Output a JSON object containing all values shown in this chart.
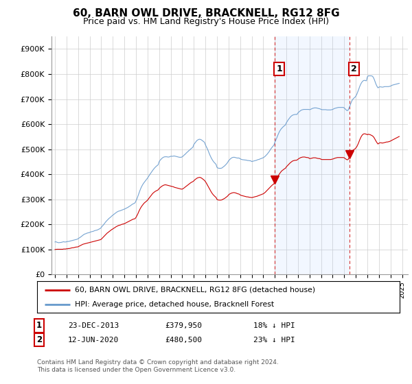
{
  "title": "60, BARN OWL DRIVE, BRACKNELL, RG12 8FG",
  "subtitle": "Price paid vs. HM Land Registry's House Price Index (HPI)",
  "title_fontsize": 11,
  "subtitle_fontsize": 9,
  "ylabel_ticks": [
    "£0",
    "£100K",
    "£200K",
    "£300K",
    "£400K",
    "£500K",
    "£600K",
    "£700K",
    "£800K",
    "£900K"
  ],
  "ytick_values": [
    0,
    100000,
    200000,
    300000,
    400000,
    500000,
    600000,
    700000,
    800000,
    900000
  ],
  "ylim": [
    0,
    950000
  ],
  "xlim_start": 1994.7,
  "xlim_end": 2025.5,
  "background_color": "#ffffff",
  "plot_bg_color": "#ffffff",
  "grid_color": "#cccccc",
  "hpi_color": "#6699cc",
  "price_color": "#cc0000",
  "shade_color": "#ddeeff",
  "marker1_date": 2013.97,
  "marker2_date": 2020.45,
  "marker1_price": 379950,
  "marker2_price": 480500,
  "vline_color": "#cc0000",
  "legend_line1": "60, BARN OWL DRIVE, BRACKNELL, RG12 8FG (detached house)",
  "legend_line2": "HPI: Average price, detached house, Bracknell Forest",
  "footnote": "Contains HM Land Registry data © Crown copyright and database right 2024.\nThis data is licensed under the Open Government Licence v3.0.",
  "hpi_months": [
    1995.0,
    1995.083,
    1995.167,
    1995.25,
    1995.333,
    1995.417,
    1995.5,
    1995.583,
    1995.667,
    1995.75,
    1995.833,
    1995.917,
    1996.0,
    1996.083,
    1996.167,
    1996.25,
    1996.333,
    1996.417,
    1996.5,
    1996.583,
    1996.667,
    1996.75,
    1996.833,
    1996.917,
    1997.0,
    1997.083,
    1997.167,
    1997.25,
    1997.333,
    1997.417,
    1997.5,
    1997.583,
    1997.667,
    1997.75,
    1997.833,
    1997.917,
    1998.0,
    1998.083,
    1998.167,
    1998.25,
    1998.333,
    1998.417,
    1998.5,
    1998.583,
    1998.667,
    1998.75,
    1998.833,
    1998.917,
    1999.0,
    1999.083,
    1999.167,
    1999.25,
    1999.333,
    1999.417,
    1999.5,
    1999.583,
    1999.667,
    1999.75,
    1999.833,
    1999.917,
    2000.0,
    2000.083,
    2000.167,
    2000.25,
    2000.333,
    2000.417,
    2000.5,
    2000.583,
    2000.667,
    2000.75,
    2000.833,
    2000.917,
    2001.0,
    2001.083,
    2001.167,
    2001.25,
    2001.333,
    2001.417,
    2001.5,
    2001.583,
    2001.667,
    2001.75,
    2001.833,
    2001.917,
    2002.0,
    2002.083,
    2002.167,
    2002.25,
    2002.333,
    2002.417,
    2002.5,
    2002.583,
    2002.667,
    2002.75,
    2002.833,
    2002.917,
    2003.0,
    2003.083,
    2003.167,
    2003.25,
    2003.333,
    2003.417,
    2003.5,
    2003.583,
    2003.667,
    2003.75,
    2003.833,
    2003.917,
    2004.0,
    2004.083,
    2004.167,
    2004.25,
    2004.333,
    2004.417,
    2004.5,
    2004.583,
    2004.667,
    2004.75,
    2004.833,
    2004.917,
    2005.0,
    2005.083,
    2005.167,
    2005.25,
    2005.333,
    2005.417,
    2005.5,
    2005.583,
    2005.667,
    2005.75,
    2005.833,
    2005.917,
    2006.0,
    2006.083,
    2006.167,
    2006.25,
    2006.333,
    2006.417,
    2006.5,
    2006.583,
    2006.667,
    2006.75,
    2006.833,
    2006.917,
    2007.0,
    2007.083,
    2007.167,
    2007.25,
    2007.333,
    2007.417,
    2007.5,
    2007.583,
    2007.667,
    2007.75,
    2007.833,
    2007.917,
    2008.0,
    2008.083,
    2008.167,
    2008.25,
    2008.333,
    2008.417,
    2008.5,
    2008.583,
    2008.667,
    2008.75,
    2008.833,
    2008.917,
    2009.0,
    2009.083,
    2009.167,
    2009.25,
    2009.333,
    2009.417,
    2009.5,
    2009.583,
    2009.667,
    2009.75,
    2009.833,
    2009.917,
    2010.0,
    2010.083,
    2010.167,
    2010.25,
    2010.333,
    2010.417,
    2010.5,
    2010.583,
    2010.667,
    2010.75,
    2010.833,
    2010.917,
    2011.0,
    2011.083,
    2011.167,
    2011.25,
    2011.333,
    2011.417,
    2011.5,
    2011.583,
    2011.667,
    2011.75,
    2011.833,
    2011.917,
    2012.0,
    2012.083,
    2012.167,
    2012.25,
    2012.333,
    2012.417,
    2012.5,
    2012.583,
    2012.667,
    2012.75,
    2012.833,
    2012.917,
    2013.0,
    2013.083,
    2013.167,
    2013.25,
    2013.333,
    2013.417,
    2013.5,
    2013.583,
    2013.667,
    2013.75,
    2013.833,
    2013.917,
    2014.0,
    2014.083,
    2014.167,
    2014.25,
    2014.333,
    2014.417,
    2014.5,
    2014.583,
    2014.667,
    2014.75,
    2014.833,
    2014.917,
    2015.0,
    2015.083,
    2015.167,
    2015.25,
    2015.333,
    2015.417,
    2015.5,
    2015.583,
    2015.667,
    2015.75,
    2015.833,
    2015.917,
    2016.0,
    2016.083,
    2016.167,
    2016.25,
    2016.333,
    2016.417,
    2016.5,
    2016.583,
    2016.667,
    2016.75,
    2016.833,
    2016.917,
    2017.0,
    2017.083,
    2017.167,
    2017.25,
    2017.333,
    2017.417,
    2017.5,
    2017.583,
    2017.667,
    2017.75,
    2017.833,
    2017.917,
    2018.0,
    2018.083,
    2018.167,
    2018.25,
    2018.333,
    2018.417,
    2018.5,
    2018.583,
    2018.667,
    2018.75,
    2018.833,
    2018.917,
    2019.0,
    2019.083,
    2019.167,
    2019.25,
    2019.333,
    2019.417,
    2019.5,
    2019.583,
    2019.667,
    2019.75,
    2019.833,
    2019.917,
    2020.0,
    2020.083,
    2020.167,
    2020.25,
    2020.333,
    2020.417,
    2020.5,
    2020.583,
    2020.667,
    2020.75,
    2020.833,
    2020.917,
    2021.0,
    2021.083,
    2021.167,
    2021.25,
    2021.333,
    2021.417,
    2021.5,
    2021.583,
    2021.667,
    2021.75,
    2021.833,
    2021.917,
    2022.0,
    2022.083,
    2022.167,
    2022.25,
    2022.333,
    2022.417,
    2022.5,
    2022.583,
    2022.667,
    2022.75,
    2022.833,
    2022.917,
    2023.0,
    2023.083,
    2023.167,
    2023.25,
    2023.333,
    2023.417,
    2023.5,
    2023.583,
    2023.667,
    2023.75,
    2023.833,
    2023.917,
    2024.0,
    2024.083,
    2024.167,
    2024.25,
    2024.333,
    2024.417,
    2024.5,
    2024.583,
    2024.667,
    2024.75
  ],
  "hpi_values": [
    130000,
    131000,
    129000,
    128000,
    127000,
    128000,
    128000,
    129000,
    130000,
    131000,
    130000,
    130000,
    131000,
    132000,
    132000,
    133000,
    134000,
    135000,
    136000,
    137000,
    138000,
    139000,
    140000,
    141000,
    143000,
    146000,
    148000,
    151000,
    154000,
    157000,
    160000,
    162000,
    163000,
    165000,
    166000,
    167000,
    168000,
    170000,
    171000,
    172000,
    173000,
    175000,
    176000,
    177000,
    178000,
    180000,
    182000,
    184000,
    188000,
    193000,
    197000,
    202000,
    207000,
    212000,
    216000,
    220000,
    224000,
    227000,
    230000,
    234000,
    237000,
    240000,
    243000,
    246000,
    249000,
    251000,
    253000,
    254000,
    255000,
    257000,
    258000,
    260000,
    261000,
    263000,
    265000,
    267000,
    269000,
    272000,
    274000,
    277000,
    280000,
    282000,
    284000,
    286000,
    294000,
    302000,
    313000,
    323000,
    334000,
    344000,
    352000,
    359000,
    365000,
    370000,
    375000,
    380000,
    385000,
    391000,
    397000,
    403000,
    408000,
    414000,
    419000,
    424000,
    428000,
    432000,
    435000,
    438000,
    450000,
    456000,
    460000,
    464000,
    467000,
    469000,
    470000,
    470000,
    470000,
    469000,
    469000,
    470000,
    472000,
    472000,
    472000,
    473000,
    473000,
    472000,
    471000,
    470000,
    469000,
    468000,
    468000,
    468000,
    470000,
    473000,
    477000,
    480000,
    484000,
    488000,
    491000,
    495000,
    498000,
    502000,
    505000,
    508000,
    519000,
    524000,
    529000,
    534000,
    537000,
    539000,
    540000,
    539000,
    537000,
    534000,
    531000,
    528000,
    518000,
    510000,
    502000,
    493000,
    483000,
    474000,
    466000,
    459000,
    453000,
    448000,
    444000,
    440000,
    428000,
    425000,
    424000,
    424000,
    424000,
    425000,
    428000,
    431000,
    434000,
    438000,
    442000,
    447000,
    454000,
    458000,
    462000,
    465000,
    467000,
    468000,
    468000,
    467000,
    466000,
    465000,
    465000,
    465000,
    462000,
    460000,
    459000,
    458000,
    458000,
    457000,
    457000,
    456000,
    455000,
    455000,
    454000,
    454000,
    451000,
    452000,
    453000,
    454000,
    455000,
    456000,
    458000,
    459000,
    460000,
    462000,
    463000,
    465000,
    466000,
    469000,
    472000,
    476000,
    480000,
    485000,
    490000,
    496000,
    502000,
    507000,
    512000,
    516000,
    528000,
    536000,
    545000,
    555000,
    564000,
    572000,
    578000,
    583000,
    587000,
    591000,
    594000,
    597000,
    606000,
    612000,
    618000,
    623000,
    628000,
    632000,
    635000,
    637000,
    638000,
    639000,
    639000,
    639000,
    645000,
    649000,
    652000,
    655000,
    657000,
    658000,
    659000,
    659000,
    659000,
    659000,
    659000,
    659000,
    658000,
    659000,
    661000,
    663000,
    664000,
    665000,
    665000,
    665000,
    664000,
    663000,
    662000,
    661000,
    659000,
    658000,
    658000,
    658000,
    658000,
    658000,
    657000,
    657000,
    657000,
    657000,
    657000,
    658000,
    659000,
    661000,
    663000,
    664000,
    665000,
    666000,
    667000,
    667000,
    667000,
    667000,
    667000,
    667000,
    665000,
    661000,
    657000,
    654000,
    656000,
    665000,
    674000,
    685000,
    694000,
    700000,
    704000,
    707000,
    712000,
    719000,
    729000,
    739000,
    750000,
    759000,
    766000,
    771000,
    774000,
    775000,
    774000,
    773000,
    789000,
    793000,
    793000,
    793000,
    793000,
    792000,
    788000,
    780000,
    769000,
    759000,
    751000,
    745000,
    748000,
    749000,
    749000,
    748000,
    748000,
    749000,
    750000,
    750000,
    750000,
    750000,
    750000,
    751000,
    752000,
    754000,
    756000,
    757000,
    758000,
    759000,
    760000,
    761000,
    762000,
    763000
  ],
  "price_months": [
    1995.0,
    1995.083,
    1995.167,
    1995.25,
    1995.333,
    1995.417,
    1995.5,
    1995.583,
    1995.667,
    1995.75,
    1995.833,
    1995.917,
    1996.0,
    1996.083,
    1996.167,
    1996.25,
    1996.333,
    1996.417,
    1996.5,
    1996.583,
    1996.667,
    1996.75,
    1996.833,
    1996.917,
    1997.0,
    1997.083,
    1997.167,
    1997.25,
    1997.333,
    1997.417,
    1997.5,
    1997.583,
    1997.667,
    1997.75,
    1997.833,
    1997.917,
    1998.0,
    1998.083,
    1998.167,
    1998.25,
    1998.333,
    1998.417,
    1998.5,
    1998.583,
    1998.667,
    1998.75,
    1998.833,
    1998.917,
    1999.0,
    1999.083,
    1999.167,
    1999.25,
    1999.333,
    1999.417,
    1999.5,
    1999.583,
    1999.667,
    1999.75,
    1999.833,
    1999.917,
    2000.0,
    2000.083,
    2000.167,
    2000.25,
    2000.333,
    2000.417,
    2000.5,
    2000.583,
    2000.667,
    2000.75,
    2000.833,
    2000.917,
    2001.0,
    2001.083,
    2001.167,
    2001.25,
    2001.333,
    2001.417,
    2001.5,
    2001.583,
    2001.667,
    2001.75,
    2001.833,
    2001.917,
    2002.0,
    2002.083,
    2002.167,
    2002.25,
    2002.333,
    2002.417,
    2002.5,
    2002.583,
    2002.667,
    2002.75,
    2002.833,
    2002.917,
    2003.0,
    2003.083,
    2003.167,
    2003.25,
    2003.333,
    2003.417,
    2003.5,
    2003.583,
    2003.667,
    2003.75,
    2003.833,
    2003.917,
    2004.0,
    2004.083,
    2004.167,
    2004.25,
    2004.333,
    2004.417,
    2004.5,
    2004.583,
    2004.667,
    2004.75,
    2004.833,
    2004.917,
    2005.0,
    2005.083,
    2005.167,
    2005.25,
    2005.333,
    2005.417,
    2005.5,
    2005.583,
    2005.667,
    2005.75,
    2005.833,
    2005.917,
    2006.0,
    2006.083,
    2006.167,
    2006.25,
    2006.333,
    2006.417,
    2006.5,
    2006.583,
    2006.667,
    2006.75,
    2006.833,
    2006.917,
    2007.0,
    2007.083,
    2007.167,
    2007.25,
    2007.333,
    2007.417,
    2007.5,
    2007.583,
    2007.667,
    2007.75,
    2007.833,
    2007.917,
    2008.0,
    2008.083,
    2008.167,
    2008.25,
    2008.333,
    2008.417,
    2008.5,
    2008.583,
    2008.667,
    2008.75,
    2008.833,
    2008.917,
    2009.0,
    2009.083,
    2009.167,
    2009.25,
    2009.333,
    2009.417,
    2009.5,
    2009.583,
    2009.667,
    2009.75,
    2009.833,
    2009.917,
    2010.0,
    2010.083,
    2010.167,
    2010.25,
    2010.333,
    2010.417,
    2010.5,
    2010.583,
    2010.667,
    2010.75,
    2010.833,
    2010.917,
    2011.0,
    2011.083,
    2011.167,
    2011.25,
    2011.333,
    2011.417,
    2011.5,
    2011.583,
    2011.667,
    2011.75,
    2011.833,
    2011.917,
    2012.0,
    2012.083,
    2012.167,
    2012.25,
    2012.333,
    2012.417,
    2012.5,
    2012.583,
    2012.667,
    2012.75,
    2012.833,
    2012.917,
    2013.0,
    2013.083,
    2013.167,
    2013.25,
    2013.333,
    2013.417,
    2013.5,
    2013.583,
    2013.667,
    2013.75,
    2013.833,
    2013.917,
    2014.0,
    2014.083,
    2014.167,
    2014.25,
    2014.333,
    2014.417,
    2014.5,
    2014.583,
    2014.667,
    2014.75,
    2014.833,
    2014.917,
    2015.0,
    2015.083,
    2015.167,
    2015.25,
    2015.333,
    2015.417,
    2015.5,
    2015.583,
    2015.667,
    2015.75,
    2015.833,
    2015.917,
    2016.0,
    2016.083,
    2016.167,
    2016.25,
    2016.333,
    2016.417,
    2016.5,
    2016.583,
    2016.667,
    2016.75,
    2016.833,
    2016.917,
    2017.0,
    2017.083,
    2017.167,
    2017.25,
    2017.333,
    2017.417,
    2017.5,
    2017.583,
    2017.667,
    2017.75,
    2017.833,
    2017.917,
    2018.0,
    2018.083,
    2018.167,
    2018.25,
    2018.333,
    2018.417,
    2018.5,
    2018.583,
    2018.667,
    2018.75,
    2018.833,
    2018.917,
    2019.0,
    2019.083,
    2019.167,
    2019.25,
    2019.333,
    2019.417,
    2019.5,
    2019.583,
    2019.667,
    2019.75,
    2019.833,
    2019.917,
    2020.0,
    2020.083,
    2020.167,
    2020.25,
    2020.333,
    2020.417,
    2020.5,
    2020.583,
    2020.667,
    2020.75,
    2020.833,
    2020.917,
    2021.0,
    2021.083,
    2021.167,
    2021.25,
    2021.333,
    2021.417,
    2021.5,
    2021.583,
    2021.667,
    2021.75,
    2021.833,
    2021.917,
    2022.0,
    2022.083,
    2022.167,
    2022.25,
    2022.333,
    2022.417,
    2022.5,
    2022.583,
    2022.667,
    2022.75,
    2022.833,
    2022.917,
    2023.0,
    2023.083,
    2023.167,
    2023.25,
    2023.333,
    2023.417,
    2023.5,
    2023.583,
    2023.667,
    2023.75,
    2023.833,
    2023.917,
    2024.0,
    2024.083,
    2024.167,
    2024.25,
    2024.333,
    2024.417,
    2024.5,
    2024.583,
    2024.667,
    2024.75
  ],
  "price_values": [
    100000,
    100500,
    101000,
    101000,
    101000,
    101000,
    101000,
    101000,
    101000,
    102000,
    102000,
    102000,
    103000,
    103000,
    104000,
    104000,
    105000,
    106000,
    107000,
    107000,
    108000,
    109000,
    110000,
    110000,
    111000,
    113000,
    115000,
    117000,
    119000,
    121000,
    122000,
    123000,
    124000,
    125000,
    126000,
    127000,
    128000,
    129000,
    130000,
    131000,
    132000,
    133000,
    134000,
    135000,
    136000,
    137000,
    138000,
    139000,
    141000,
    145000,
    149000,
    153000,
    157000,
    161000,
    165000,
    168000,
    171000,
    174000,
    177000,
    180000,
    182000,
    185000,
    187000,
    190000,
    192000,
    194000,
    196000,
    197000,
    198000,
    200000,
    201000,
    202000,
    203000,
    205000,
    207000,
    209000,
    211000,
    213000,
    215000,
    217000,
    219000,
    221000,
    222000,
    223000,
    228000,
    235000,
    243000,
    252000,
    260000,
    267000,
    273000,
    278000,
    283000,
    287000,
    290000,
    293000,
    297000,
    302000,
    307000,
    312000,
    317000,
    322000,
    326000,
    329000,
    332000,
    334000,
    336000,
    338000,
    343000,
    347000,
    350000,
    353000,
    355000,
    357000,
    358000,
    358000,
    357000,
    356000,
    355000,
    354000,
    353000,
    352000,
    351000,
    350000,
    348000,
    347000,
    346000,
    345000,
    344000,
    343000,
    342000,
    341000,
    341000,
    343000,
    346000,
    349000,
    352000,
    355000,
    358000,
    361000,
    364000,
    367000,
    369000,
    371000,
    374000,
    378000,
    381000,
    384000,
    386000,
    387000,
    388000,
    387000,
    385000,
    382000,
    379000,
    376000,
    371000,
    365000,
    358000,
    351000,
    344000,
    337000,
    330000,
    324000,
    319000,
    315000,
    311000,
    308000,
    300000,
    298000,
    297000,
    297000,
    297000,
    298000,
    300000,
    302000,
    304000,
    307000,
    310000,
    313000,
    318000,
    321000,
    323000,
    325000,
    326000,
    327000,
    327000,
    326000,
    325000,
    323000,
    322000,
    321000,
    318000,
    316000,
    315000,
    314000,
    313000,
    312000,
    311000,
    310000,
    310000,
    309000,
    308000,
    308000,
    307000,
    308000,
    309000,
    310000,
    311000,
    312000,
    313000,
    315000,
    316000,
    318000,
    319000,
    321000,
    322000,
    325000,
    328000,
    332000,
    336000,
    340000,
    344000,
    348000,
    352000,
    356000,
    359000,
    362000,
    371000,
    377000,
    383000,
    390000,
    397000,
    403000,
    408000,
    413000,
    416000,
    419000,
    422000,
    424000,
    430000,
    434000,
    438000,
    442000,
    446000,
    449000,
    452000,
    454000,
    455000,
    456000,
    456000,
    457000,
    460000,
    463000,
    465000,
    467000,
    468000,
    469000,
    469000,
    469000,
    468000,
    467000,
    467000,
    466000,
    463000,
    463000,
    464000,
    465000,
    466000,
    466000,
    466000,
    465000,
    464000,
    463000,
    463000,
    462000,
    460000,
    459000,
    459000,
    459000,
    459000,
    459000,
    459000,
    459000,
    459000,
    459000,
    459000,
    460000,
    461000,
    462000,
    464000,
    465000,
    466000,
    467000,
    467000,
    467000,
    467000,
    467000,
    467000,
    467000,
    466000,
    463000,
    460000,
    458000,
    459000,
    467000,
    475000,
    484000,
    491000,
    496000,
    499000,
    501000,
    505000,
    510000,
    518000,
    527000,
    537000,
    546000,
    553000,
    558000,
    561000,
    562000,
    561000,
    560000,
    558000,
    560000,
    559000,
    558000,
    556000,
    554000,
    551000,
    546000,
    539000,
    532000,
    526000,
    521000,
    524000,
    526000,
    526000,
    525000,
    525000,
    526000,
    527000,
    528000,
    529000,
    529000,
    530000,
    531000,
    533000,
    535000,
    537000,
    539000,
    541000,
    543000,
    545000,
    547000,
    549000,
    551000
  ]
}
